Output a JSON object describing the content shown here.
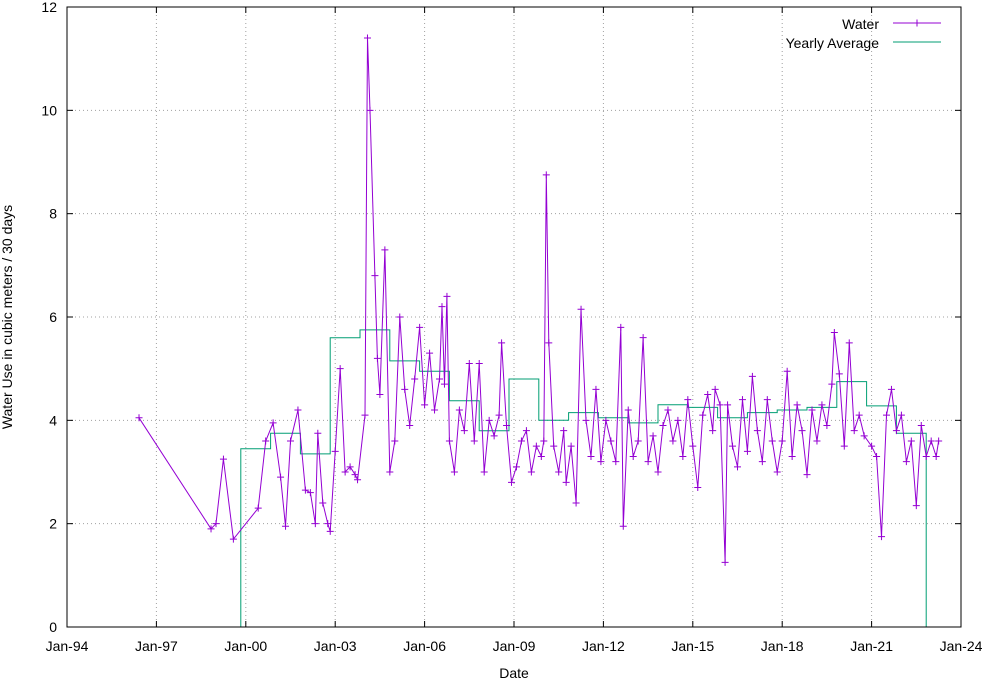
{
  "chart_data": {
    "type": "line",
    "title": "",
    "xlabel": "Date",
    "ylabel": "Water Use in cubic meters / 30 days",
    "ylim": [
      0,
      12
    ],
    "xlim": [
      "1994-01",
      "2024-01"
    ],
    "y_ticks": [
      "0",
      "2",
      "4",
      "6",
      "8",
      "10",
      "12"
    ],
    "x_ticks": [
      "Jan-94",
      "Jan-97",
      "Jan-00",
      "Jan-03",
      "Jan-06",
      "Jan-09",
      "Jan-12",
      "Jan-15",
      "Jan-18",
      "Jan-21",
      "Jan-24"
    ],
    "grid": true,
    "legend_position": "top-right",
    "colors": {
      "water": "#9400d3",
      "yearly": "#009e73"
    },
    "series": [
      {
        "name": "Water",
        "style": "line-with-plus-markers",
        "points": [
          [
            "1996-06",
            4.05
          ],
          [
            "1998-11",
            1.9
          ],
          [
            "1999-01",
            2.0
          ],
          [
            "1999-04",
            3.25
          ],
          [
            "1999-08",
            1.7
          ],
          [
            "2000-06",
            2.3
          ],
          [
            "2000-09",
            3.6
          ],
          [
            "2000-12",
            3.95
          ],
          [
            "2001-03",
            2.9
          ],
          [
            "2001-05",
            1.95
          ],
          [
            "2001-07",
            3.6
          ],
          [
            "2001-10",
            4.2
          ],
          [
            "2002-01",
            2.65
          ],
          [
            "2002-03",
            2.6
          ],
          [
            "2002-05",
            2.0
          ],
          [
            "2002-06",
            3.75
          ],
          [
            "2002-08",
            2.4
          ],
          [
            "2002-10",
            2.0
          ],
          [
            "2002-11",
            1.85
          ],
          [
            "2003-01",
            3.4
          ],
          [
            "2003-03",
            5.0
          ],
          [
            "2003-05",
            3.0
          ],
          [
            "2003-07",
            3.1
          ],
          [
            "2003-09",
            2.95
          ],
          [
            "2003-10",
            2.85
          ],
          [
            "2004-01",
            4.1
          ],
          [
            "2004-02",
            11.4
          ],
          [
            "2004-03",
            10.0
          ],
          [
            "2004-05",
            6.8
          ],
          [
            "2004-06",
            5.2
          ],
          [
            "2004-07",
            4.5
          ],
          [
            "2004-09",
            7.3
          ],
          [
            "2004-11",
            3.0
          ],
          [
            "2005-01",
            3.6
          ],
          [
            "2005-03",
            6.0
          ],
          [
            "2005-05",
            4.6
          ],
          [
            "2005-07",
            3.9
          ],
          [
            "2005-09",
            4.8
          ],
          [
            "2005-11",
            5.8
          ],
          [
            "2006-01",
            4.3
          ],
          [
            "2006-03",
            5.3
          ],
          [
            "2006-05",
            4.2
          ],
          [
            "2006-07",
            4.8
          ],
          [
            "2006-08",
            6.2
          ],
          [
            "2006-09",
            4.7
          ],
          [
            "2006-10",
            6.4
          ],
          [
            "2006-11",
            3.6
          ],
          [
            "2007-01",
            3.0
          ],
          [
            "2007-03",
            4.2
          ],
          [
            "2007-05",
            3.8
          ],
          [
            "2007-07",
            5.1
          ],
          [
            "2007-09",
            3.6
          ],
          [
            "2007-11",
            5.1
          ],
          [
            "2008-01",
            3.0
          ],
          [
            "2008-03",
            4.0
          ],
          [
            "2008-05",
            3.7
          ],
          [
            "2008-07",
            4.1
          ],
          [
            "2008-08",
            5.5
          ],
          [
            "2008-10",
            3.9
          ],
          [
            "2008-12",
            2.8
          ],
          [
            "2009-02",
            3.1
          ],
          [
            "2009-04",
            3.6
          ],
          [
            "2009-06",
            3.8
          ],
          [
            "2009-08",
            3.0
          ],
          [
            "2009-10",
            3.5
          ],
          [
            "2009-12",
            3.3
          ],
          [
            "2010-01",
            3.6
          ],
          [
            "2010-02",
            8.75
          ],
          [
            "2010-03",
            5.5
          ],
          [
            "2010-05",
            3.5
          ],
          [
            "2010-07",
            3.0
          ],
          [
            "2010-09",
            3.8
          ],
          [
            "2010-10",
            2.8
          ],
          [
            "2010-12",
            3.5
          ],
          [
            "2011-02",
            2.4
          ],
          [
            "2011-04",
            6.15
          ],
          [
            "2011-06",
            4.0
          ],
          [
            "2011-08",
            3.3
          ],
          [
            "2011-10",
            4.6
          ],
          [
            "2011-12",
            3.2
          ],
          [
            "2012-02",
            4.0
          ],
          [
            "2012-04",
            3.6
          ],
          [
            "2012-06",
            3.2
          ],
          [
            "2012-08",
            5.8
          ],
          [
            "2012-09",
            1.95
          ],
          [
            "2012-11",
            4.2
          ],
          [
            "2013-01",
            3.3
          ],
          [
            "2013-03",
            3.6
          ],
          [
            "2013-05",
            5.6
          ],
          [
            "2013-07",
            3.2
          ],
          [
            "2013-09",
            3.7
          ],
          [
            "2013-11",
            3.0
          ],
          [
            "2014-01",
            3.9
          ],
          [
            "2014-03",
            4.2
          ],
          [
            "2014-05",
            3.6
          ],
          [
            "2014-07",
            4.0
          ],
          [
            "2014-09",
            3.3
          ],
          [
            "2014-11",
            4.4
          ],
          [
            "2015-01",
            3.5
          ],
          [
            "2015-03",
            2.7
          ],
          [
            "2015-05",
            4.1
          ],
          [
            "2015-07",
            4.5
          ],
          [
            "2015-09",
            3.8
          ],
          [
            "2015-10",
            4.6
          ],
          [
            "2015-12",
            4.3
          ],
          [
            "2016-02",
            1.25
          ],
          [
            "2016-03",
            4.3
          ],
          [
            "2016-05",
            3.5
          ],
          [
            "2016-07",
            3.1
          ],
          [
            "2016-09",
            4.4
          ],
          [
            "2016-11",
            3.4
          ],
          [
            "2017-01",
            4.85
          ],
          [
            "2017-03",
            3.8
          ],
          [
            "2017-05",
            3.2
          ],
          [
            "2017-07",
            4.4
          ],
          [
            "2017-09",
            3.6
          ],
          [
            "2017-11",
            3.0
          ],
          [
            "2018-01",
            3.6
          ],
          [
            "2018-03",
            4.95
          ],
          [
            "2018-05",
            3.3
          ],
          [
            "2018-07",
            4.3
          ],
          [
            "2018-09",
            3.8
          ],
          [
            "2018-11",
            2.95
          ],
          [
            "2019-01",
            4.2
          ],
          [
            "2019-03",
            3.6
          ],
          [
            "2019-05",
            4.3
          ],
          [
            "2019-07",
            3.9
          ],
          [
            "2019-09",
            4.7
          ],
          [
            "2019-10",
            5.7
          ],
          [
            "2019-12",
            4.9
          ],
          [
            "2020-02",
            3.5
          ],
          [
            "2020-04",
            5.5
          ],
          [
            "2020-06",
            3.8
          ],
          [
            "2020-08",
            4.1
          ],
          [
            "2020-10",
            3.7
          ],
          [
            "2021-01",
            3.5
          ],
          [
            "2021-03",
            3.3
          ],
          [
            "2021-05",
            1.75
          ],
          [
            "2021-07",
            4.1
          ],
          [
            "2021-09",
            4.6
          ],
          [
            "2021-11",
            3.8
          ],
          [
            "2022-01",
            4.1
          ],
          [
            "2022-03",
            3.2
          ],
          [
            "2022-05",
            3.6
          ],
          [
            "2022-07",
            2.35
          ],
          [
            "2022-09",
            3.9
          ],
          [
            "2022-11",
            3.3
          ],
          [
            "2023-01",
            3.6
          ],
          [
            "2023-03",
            3.3
          ],
          [
            "2023-04",
            3.6
          ]
        ]
      },
      {
        "name": "Yearly Average",
        "style": "step",
        "points": [
          [
            "1999-11",
            0
          ],
          [
            "1999-11",
            3.45
          ],
          [
            "2000-11",
            3.45
          ],
          [
            "2000-11",
            3.75
          ],
          [
            "2001-11",
            3.75
          ],
          [
            "2001-11",
            3.35
          ],
          [
            "2002-11",
            3.35
          ],
          [
            "2002-11",
            5.6
          ],
          [
            "2003-11",
            5.6
          ],
          [
            "2003-11",
            5.75
          ],
          [
            "2004-11",
            5.75
          ],
          [
            "2004-11",
            5.15
          ],
          [
            "2005-11",
            5.15
          ],
          [
            "2005-11",
            4.95
          ],
          [
            "2006-11",
            4.95
          ],
          [
            "2006-11",
            4.38
          ],
          [
            "2007-11",
            4.38
          ],
          [
            "2007-11",
            3.8
          ],
          [
            "2008-11",
            3.8
          ],
          [
            "2008-11",
            4.8
          ],
          [
            "2009-11",
            4.8
          ],
          [
            "2009-11",
            4.0
          ],
          [
            "2010-11",
            4.0
          ],
          [
            "2010-11",
            4.15
          ],
          [
            "2011-11",
            4.15
          ],
          [
            "2011-11",
            4.05
          ],
          [
            "2012-11",
            4.05
          ],
          [
            "2012-11",
            3.95
          ],
          [
            "2013-11",
            3.95
          ],
          [
            "2013-11",
            4.3
          ],
          [
            "2014-11",
            4.3
          ],
          [
            "2014-11",
            4.25
          ],
          [
            "2015-11",
            4.25
          ],
          [
            "2015-11",
            4.05
          ],
          [
            "2016-11",
            4.05
          ],
          [
            "2016-11",
            4.15
          ],
          [
            "2017-11",
            4.15
          ],
          [
            "2017-11",
            4.2
          ],
          [
            "2018-11",
            4.2
          ],
          [
            "2018-11",
            4.25
          ],
          [
            "2019-11",
            4.25
          ],
          [
            "2019-11",
            4.75
          ],
          [
            "2020-11",
            4.75
          ],
          [
            "2020-11",
            4.28
          ],
          [
            "2021-11",
            4.28
          ],
          [
            "2021-11",
            3.75
          ],
          [
            "2022-11",
            3.75
          ],
          [
            "2022-11",
            0
          ]
        ]
      }
    ]
  }
}
